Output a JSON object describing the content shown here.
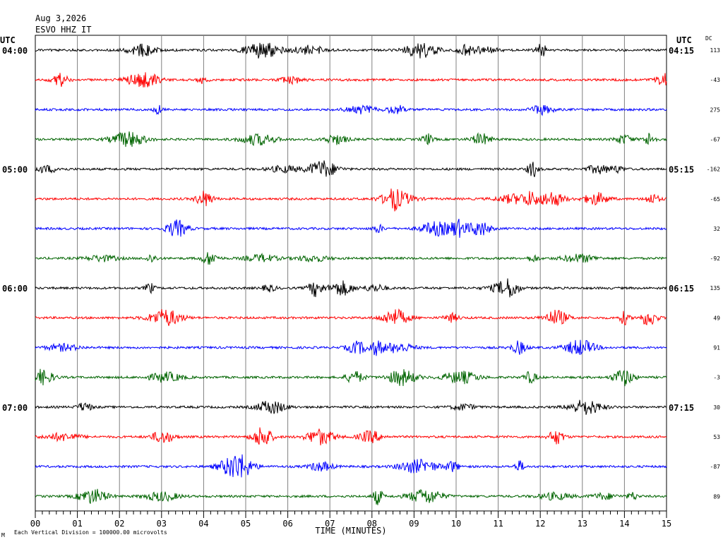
{
  "header": {
    "date": "Aug 3,2026",
    "station": "ESVO HHZ IT",
    "utc_left": "UTC",
    "utc_right": "UTC",
    "dc_label": "DC"
  },
  "footer": {
    "x_axis_label": "TIME (MINUTES)",
    "scale_note": "Each Vertical Division = 100000.00 microvolts",
    "corner_mark": "M"
  },
  "chart_data": {
    "type": "line",
    "title": "ESVO HHZ IT",
    "xlabel": "TIME (MINUTES)",
    "xlim": [
      0,
      15
    ],
    "x_ticks": [
      "00",
      "01",
      "02",
      "03",
      "04",
      "05",
      "06",
      "07",
      "08",
      "09",
      "10",
      "11",
      "12",
      "13",
      "14",
      "15"
    ],
    "minutes_per_row": 15,
    "row_colors": [
      "#000000",
      "#ff0000",
      "#0000ff",
      "#006400"
    ],
    "left_hour_labels": [
      "04:00",
      "05:00",
      "06:00",
      "07:00"
    ],
    "right_time_labels": [
      "04:15",
      "05:15",
      "06:15",
      "07:15"
    ],
    "dc_offsets": [
      113,
      -43,
      275,
      -67,
      -162,
      -65,
      32,
      -92,
      135,
      49,
      91,
      -3,
      30,
      53,
      -87,
      89
    ],
    "grid": true
  }
}
